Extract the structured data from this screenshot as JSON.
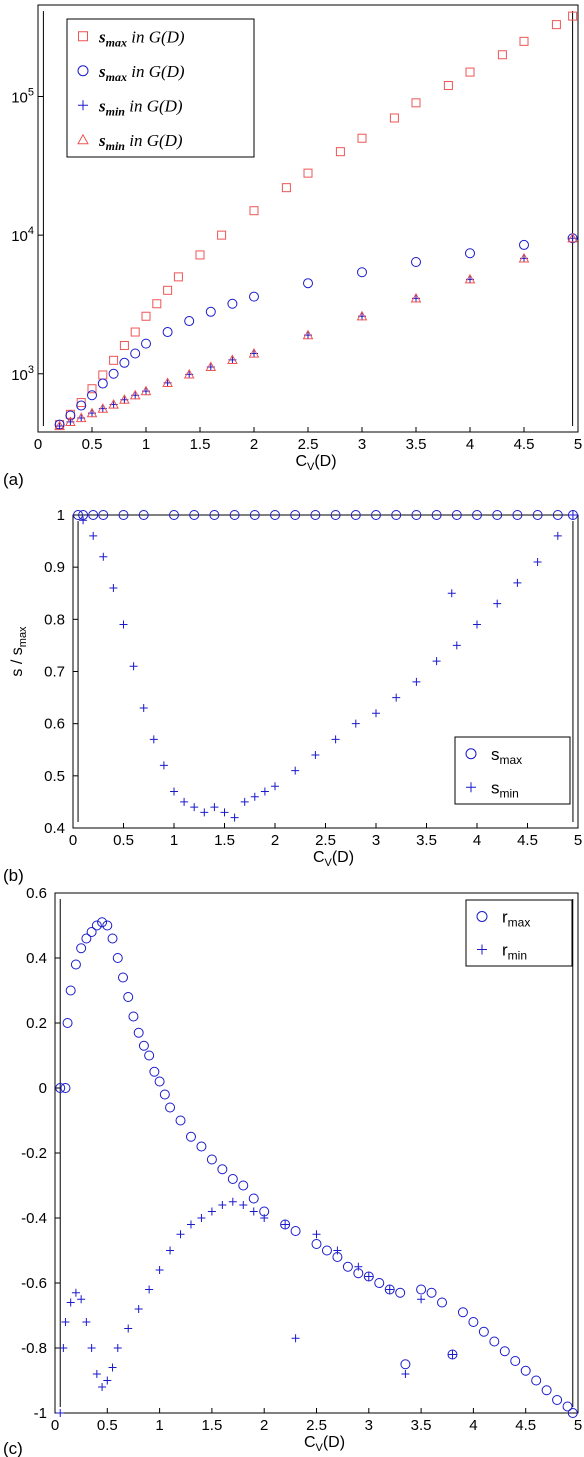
{
  "colors": {
    "red": "#ee5555",
    "blue": "#1a1acc",
    "axis": "#000000"
  },
  "panels": [
    {
      "label": "(a)",
      "xlabel_main": "C",
      "xlabel_sub": "V",
      "xlabel_tail": "(D)",
      "ylabel_main": "",
      "ylabel_sub": "",
      "xticks": [
        "0",
        "0.5",
        "1",
        "1.5",
        "2",
        "2.5",
        "3",
        "3.5",
        "4",
        "4.5",
        "5"
      ],
      "yticks_base": "10",
      "yticks_exp": [
        "3",
        "4",
        "5"
      ],
      "legend": [
        {
          "name": "s",
          "sub": "max",
          "tail": "in G(D)",
          "symbol": "square",
          "color": "red"
        },
        {
          "name": "s",
          "sub": "max",
          "tail": "in G(D)",
          "symbol": "circle",
          "color": "blue"
        },
        {
          "name": "s",
          "sub": "min",
          "tail": "in G(D)",
          "symbol": "plus",
          "color": "blue"
        },
        {
          "name": "s",
          "sub": "min",
          "tail": "in G(D)",
          "symbol": "triangle",
          "color": "red"
        }
      ]
    },
    {
      "label": "(b)",
      "xlabel_main": "C",
      "xlabel_sub": "V",
      "xlabel_tail": "(D)",
      "ylabel_main": "s / s",
      "ylabel_sub": "max",
      "xticks": [
        "0",
        "0.5",
        "1",
        "1.5",
        "2",
        "2.5",
        "3",
        "3.5",
        "4",
        "4.5",
        "5"
      ],
      "yticks": [
        "0.4",
        "0.5",
        "0.6",
        "0.7",
        "0.8",
        "0.9",
        "1"
      ],
      "legend": [
        {
          "name": "s",
          "sub": "max",
          "symbol": "circle",
          "color": "blue"
        },
        {
          "name": "s",
          "sub": "min",
          "symbol": "plus",
          "color": "blue"
        }
      ]
    },
    {
      "label": "(c)",
      "xlabel_main": "C",
      "xlabel_sub": "V",
      "xlabel_tail": "(D)",
      "xticks": [
        "0",
        "0.5",
        "1",
        "1.5",
        "2",
        "2.5",
        "3",
        "3.5",
        "4",
        "4.5",
        "5"
      ],
      "yticks": [
        "-1",
        "-0.8",
        "-0.6",
        "-0.4",
        "-0.2",
        "0",
        "0.2",
        "0.4",
        "0.6"
      ],
      "legend": [
        {
          "name": "r",
          "sub": "max",
          "symbol": "circle",
          "color": "blue"
        },
        {
          "name": "r",
          "sub": "min",
          "symbol": "plus",
          "color": "blue"
        }
      ]
    }
  ],
  "chart_data": [
    {
      "type": "scatter",
      "title": "",
      "xlabel": "C_V(D)",
      "ylabel": "",
      "xlim": [
        0,
        5
      ],
      "ylim_log10": [
        2.58,
        5.66
      ],
      "log_y": true,
      "series": [
        {
          "name": "s_max in G(D) (calligraphic)",
          "marker": "square",
          "color": "red",
          "x": [
            0.2,
            0.3,
            0.4,
            0.5,
            0.6,
            0.7,
            0.8,
            0.9,
            1.0,
            1.1,
            1.2,
            1.3,
            1.5,
            1.7,
            2.0,
            2.3,
            2.5,
            2.8,
            3.0,
            3.3,
            3.5,
            3.8,
            4.0,
            4.3,
            4.5,
            4.8,
            4.95
          ],
          "y": [
            430,
            510,
            620,
            780,
            980,
            1250,
            1600,
            2000,
            2600,
            3200,
            4000,
            5000,
            7200,
            10000,
            15000,
            22000,
            28000,
            40000,
            50000,
            70000,
            90000,
            120000,
            150000,
            200000,
            250000,
            330000,
            380000
          ]
        },
        {
          "name": "s_max in G(D)",
          "marker": "circle",
          "color": "blue",
          "x": [
            0.2,
            0.3,
            0.4,
            0.5,
            0.6,
            0.7,
            0.8,
            0.9,
            1.0,
            1.2,
            1.4,
            1.6,
            1.8,
            2.0,
            2.5,
            3.0,
            3.5,
            4.0,
            4.5,
            4.95
          ],
          "y": [
            430,
            500,
            590,
            700,
            850,
            1000,
            1200,
            1400,
            1650,
            2000,
            2400,
            2800,
            3200,
            3600,
            4500,
            5400,
            6400,
            7400,
            8500,
            9500
          ]
        },
        {
          "name": "s_min in G(D)",
          "marker": "plus",
          "color": "blue",
          "x": [
            0.2,
            0.3,
            0.4,
            0.5,
            0.6,
            0.7,
            0.8,
            0.9,
            1.0,
            1.2,
            1.4,
            1.6,
            1.8,
            2.0,
            2.5,
            3.0,
            3.5,
            4.0,
            4.5,
            4.95
          ],
          "y": [
            420,
            450,
            480,
            520,
            560,
            600,
            650,
            700,
            750,
            860,
            990,
            1120,
            1260,
            1400,
            1900,
            2600,
            3500,
            4800,
            6800,
            9500
          ]
        },
        {
          "name": "s_min in G(D) (calligraphic)",
          "marker": "triangle",
          "color": "red",
          "x": [
            0.2,
            0.3,
            0.4,
            0.5,
            0.6,
            0.7,
            0.8,
            0.9,
            1.0,
            1.2,
            1.4,
            1.6,
            1.8,
            2.0,
            2.5,
            3.0,
            3.5,
            4.0,
            4.5,
            4.95
          ],
          "y": [
            420,
            450,
            480,
            520,
            560,
            600,
            650,
            700,
            750,
            860,
            990,
            1120,
            1260,
            1400,
            1900,
            2600,
            3500,
            4800,
            6800,
            9500
          ]
        }
      ]
    },
    {
      "type": "scatter",
      "title": "",
      "xlabel": "C_V(D)",
      "ylabel": "s / s_max",
      "xlim": [
        0,
        5
      ],
      "ylim": [
        0.4,
        1.0
      ],
      "series": [
        {
          "name": "s_max",
          "marker": "circle",
          "color": "blue",
          "x": [
            0.05,
            0.1,
            0.2,
            0.3,
            0.5,
            0.7,
            1.0,
            1.2,
            1.4,
            1.6,
            1.8,
            2.0,
            2.2,
            2.4,
            2.6,
            2.8,
            3.0,
            3.2,
            3.4,
            3.6,
            3.8,
            4.0,
            4.2,
            4.4,
            4.6,
            4.8,
            4.95
          ],
          "y": [
            1,
            1,
            1,
            1,
            1,
            1,
            1,
            1,
            1,
            1,
            1,
            1,
            1,
            1,
            1,
            1,
            1,
            1,
            1,
            1,
            1,
            1,
            1,
            1,
            1,
            1,
            1
          ]
        },
        {
          "name": "s_min",
          "marker": "plus",
          "color": "blue",
          "x": [
            0.1,
            0.2,
            0.3,
            0.4,
            0.5,
            0.6,
            0.7,
            0.8,
            0.9,
            1.0,
            1.1,
            1.2,
            1.3,
            1.4,
            1.5,
            1.6,
            1.7,
            1.8,
            1.9,
            2.0,
            2.2,
            2.4,
            2.6,
            2.8,
            3.0,
            3.2,
            3.4,
            3.6,
            3.75,
            3.8,
            4.0,
            4.2,
            4.4,
            4.6,
            4.8,
            4.95
          ],
          "y": [
            0.99,
            0.96,
            0.92,
            0.86,
            0.79,
            0.71,
            0.63,
            0.57,
            0.52,
            0.47,
            0.45,
            0.44,
            0.43,
            0.44,
            0.43,
            0.42,
            0.45,
            0.46,
            0.47,
            0.48,
            0.51,
            0.54,
            0.57,
            0.6,
            0.62,
            0.65,
            0.68,
            0.72,
            0.85,
            0.75,
            0.79,
            0.83,
            0.87,
            0.91,
            0.96,
            1.0
          ]
        }
      ]
    },
    {
      "type": "scatter",
      "title": "",
      "xlabel": "C_V(D)",
      "ylabel": "",
      "xlim": [
        0,
        5
      ],
      "ylim": [
        -1,
        0.6
      ],
      "series": [
        {
          "name": "r_max",
          "marker": "circle",
          "color": "blue",
          "x": [
            0.05,
            0.1,
            0.12,
            0.15,
            0.2,
            0.25,
            0.3,
            0.35,
            0.4,
            0.45,
            0.5,
            0.55,
            0.6,
            0.65,
            0.7,
            0.75,
            0.8,
            0.85,
            0.9,
            0.95,
            1.0,
            1.05,
            1.1,
            1.2,
            1.3,
            1.4,
            1.5,
            1.6,
            1.7,
            1.8,
            1.9,
            2.0,
            2.2,
            2.3,
            2.5,
            2.6,
            2.7,
            2.8,
            2.9,
            3.0,
            3.1,
            3.2,
            3.3,
            3.35,
            3.5,
            3.6,
            3.7,
            3.8,
            3.9,
            4.0,
            4.1,
            4.2,
            4.3,
            4.4,
            4.5,
            4.6,
            4.7,
            4.8,
            4.9,
            4.95
          ],
          "y": [
            0,
            0,
            0.2,
            0.3,
            0.38,
            0.43,
            0.46,
            0.48,
            0.5,
            0.51,
            0.5,
            0.46,
            0.4,
            0.34,
            0.28,
            0.22,
            0.17,
            0.13,
            0.1,
            0.05,
            0.02,
            -0.02,
            -0.06,
            -0.1,
            -0.15,
            -0.18,
            -0.22,
            -0.25,
            -0.28,
            -0.3,
            -0.34,
            -0.38,
            -0.42,
            -0.44,
            -0.48,
            -0.5,
            -0.52,
            -0.55,
            -0.57,
            -0.58,
            -0.6,
            -0.62,
            -0.63,
            -0.85,
            -0.62,
            -0.63,
            -0.66,
            -0.82,
            -0.69,
            -0.72,
            -0.75,
            -0.78,
            -0.81,
            -0.84,
            -0.87,
            -0.9,
            -0.93,
            -0.96,
            -0.98,
            -1.0
          ]
        },
        {
          "name": "r_min",
          "marker": "plus",
          "color": "blue",
          "x": [
            0.05,
            0.08,
            0.1,
            0.15,
            0.2,
            0.25,
            0.3,
            0.35,
            0.4,
            0.45,
            0.5,
            0.55,
            0.6,
            0.7,
            0.8,
            0.9,
            1.0,
            1.1,
            1.2,
            1.3,
            1.4,
            1.5,
            1.6,
            1.7,
            1.8,
            1.9,
            2.0,
            2.2,
            2.3,
            2.5,
            2.7,
            2.9,
            3.0,
            3.2,
            3.35,
            3.5,
            3.8
          ],
          "y": [
            -1.0,
            -0.8,
            -0.72,
            -0.66,
            -0.63,
            -0.65,
            -0.72,
            -0.8,
            -0.88,
            -0.92,
            -0.9,
            -0.86,
            -0.8,
            -0.74,
            -0.68,
            -0.62,
            -0.56,
            -0.5,
            -0.45,
            -0.42,
            -0.4,
            -0.38,
            -0.36,
            -0.35,
            -0.36,
            -0.38,
            -0.4,
            -0.42,
            -0.77,
            -0.45,
            -0.5,
            -0.55,
            -0.58,
            -0.62,
            -0.88,
            -0.65,
            -0.82
          ]
        }
      ]
    }
  ]
}
